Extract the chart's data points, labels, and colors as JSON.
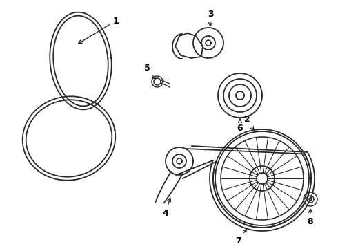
{
  "background_color": "#ffffff",
  "line_color": "#2a2a2a",
  "line_width": 1.3,
  "label_color": "#000000",
  "fig_width": 4.9,
  "fig_height": 3.6,
  "dpi": 100
}
